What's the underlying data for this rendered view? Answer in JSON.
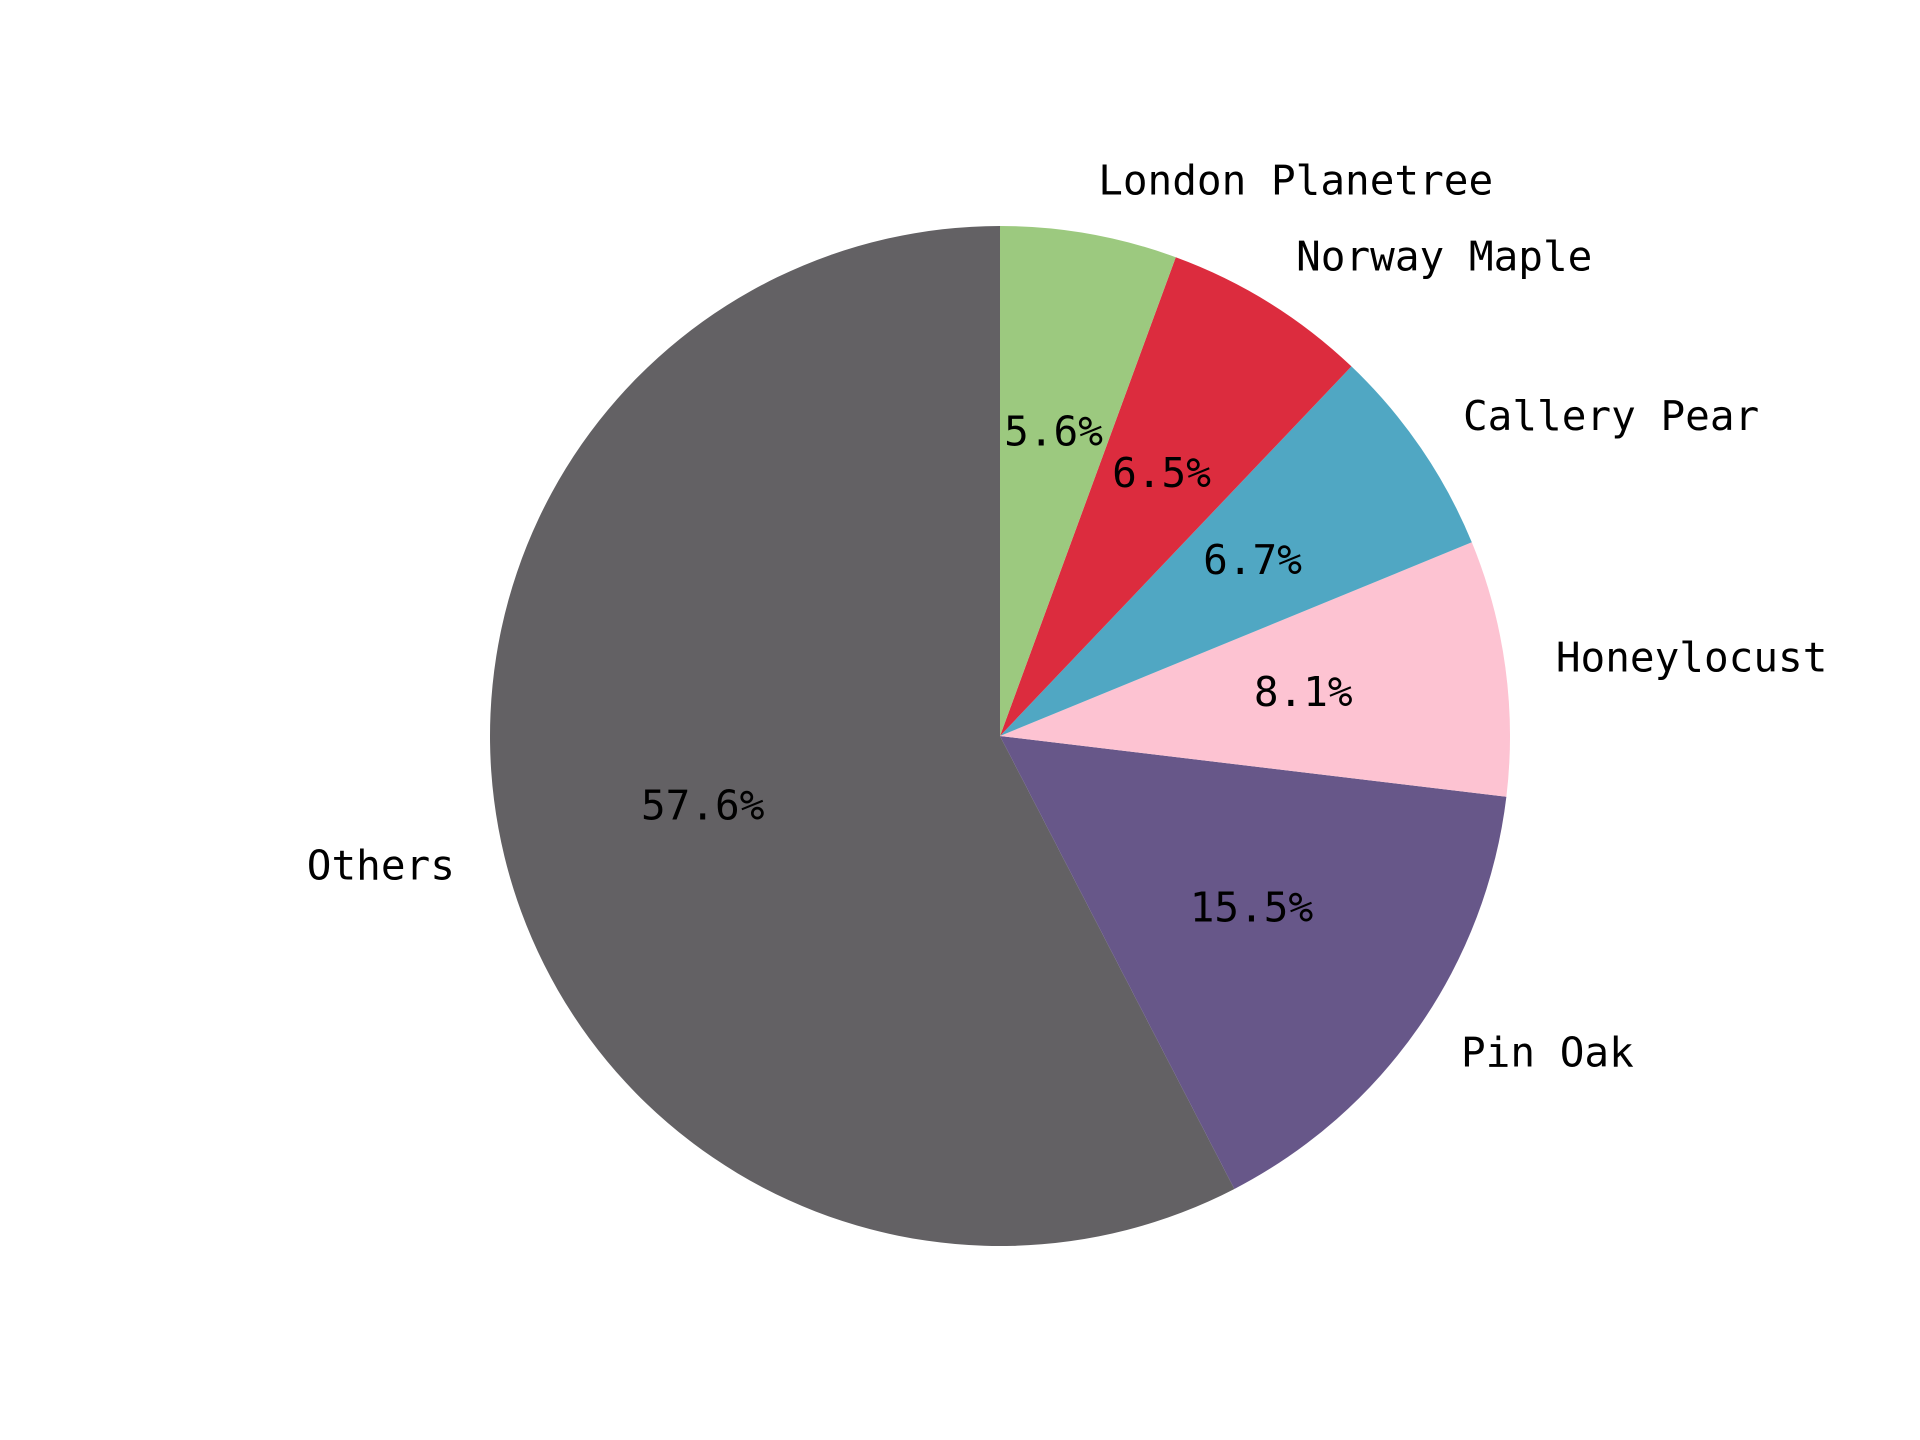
{
  "chart_data": {
    "type": "pie",
    "title": "",
    "start_angle_deg": 90,
    "direction": "counterclockwise",
    "slices": [
      {
        "label": "Others",
        "value": 57.6,
        "pct_label": "57.6%",
        "color": "#636164"
      },
      {
        "label": "Pin Oak",
        "value": 15.5,
        "pct_label": "15.5%",
        "color": "#675789"
      },
      {
        "label": "Honeylocust",
        "value": 8.1,
        "pct_label": "8.1%",
        "color": "#fdc3d2"
      },
      {
        "label": "Callery Pear",
        "value": 6.7,
        "pct_label": "6.7%",
        "color": "#50a7c3"
      },
      {
        "label": "Norway Maple",
        "value": 6.5,
        "pct_label": "6.5%",
        "color": "#dc2c3e"
      },
      {
        "label": "London Planetree",
        "value": 5.6,
        "pct_label": "5.6%",
        "color": "#9cc97f"
      }
    ]
  }
}
